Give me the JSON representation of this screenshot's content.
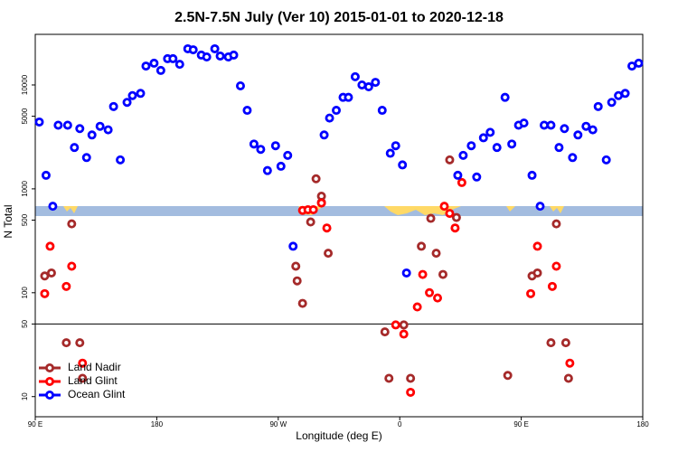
{
  "chart_data": {
    "type": "scatter",
    "title": "2.5N-7.5N July (Ver 10)   2015-01-01 to 2020-12-18",
    "x_label": "Longitude (deg E)",
    "y_label": "N Total",
    "xlim": [
      90,
      540
    ],
    "xticks": [
      {
        "value": 90,
        "label": "90 E"
      },
      180,
      {
        "value": 270,
        "label": "90 W"
      },
      {
        "value": 360,
        "label": "0"
      },
      {
        "value": 450,
        "label": "90 E"
      },
      {
        "value": 540,
        "label": "180"
      }
    ],
    "ylim": [
      6.4,
      30700
    ],
    "log_y": true,
    "yticks": [
      10,
      50,
      100,
      500,
      1000,
      5000,
      10000
    ],
    "legend": "bottom left",
    "series": [
      {
        "name": "Land Nadir",
        "color": "#a52a2a",
        "x": [
          97,
          102,
          117,
          113,
          123,
          125,
          288,
          283,
          284,
          294,
          298,
          302,
          302,
          307,
          349,
          352,
          363,
          368,
          376,
          383,
          387,
          392,
          397,
          402,
          440,
          458,
          462,
          476,
          472,
          483,
          485
        ],
        "values": [
          145,
          155,
          460,
          33,
          33,
          15,
          79,
          180,
          130,
          480,
          1250,
          850,
          740,
          240,
          42,
          15,
          49,
          15,
          280,
          520,
          240,
          150,
          1900,
          530,
          16,
          145,
          155,
          460,
          33,
          33,
          15
        ]
      },
      {
        "name": "Land Glint",
        "color": "#ff0000",
        "x": [
          97,
          101,
          113,
          117,
          125,
          288,
          292,
          296,
          302,
          306,
          357,
          363,
          368,
          373,
          377,
          382,
          388,
          393,
          397,
          401,
          406,
          457,
          462,
          473,
          476,
          486
        ],
        "values": [
          98,
          280,
          115,
          180,
          21,
          620,
          630,
          630,
          730,
          420,
          49,
          40,
          11,
          73,
          150,
          100,
          89,
          680,
          580,
          420,
          1150,
          98,
          280,
          115,
          180,
          21
        ]
      },
      {
        "name": "Ocean Glint",
        "color": "#0000ff",
        "x": [
          93,
          98,
          103,
          107,
          114,
          119,
          123,
          128,
          132,
          138,
          144,
          148,
          153,
          158,
          162,
          168,
          172,
          178,
          183,
          188,
          192,
          197,
          203,
          207,
          213,
          217,
          223,
          227,
          233,
          237,
          242,
          247,
          252,
          257,
          262,
          268,
          272,
          277,
          281,
          304,
          308,
          313,
          318,
          322,
          327,
          332,
          337,
          342,
          347,
          353,
          357,
          362,
          365,
          403,
          407,
          413,
          417,
          422,
          427,
          432,
          438,
          443,
          448,
          452,
          458,
          464,
          467,
          472,
          478,
          482,
          488,
          492,
          498,
          503,
          507,
          513,
          517,
          522,
          527,
          532,
          537
        ],
        "values": [
          4400,
          1350,
          680,
          4100,
          4100,
          2500,
          3800,
          2000,
          3300,
          4000,
          3700,
          6200,
          1900,
          6800,
          7900,
          8300,
          15200,
          16200,
          13800,
          17900,
          17900,
          15800,
          22300,
          21800,
          19400,
          18600,
          22300,
          19000,
          18600,
          19400,
          9800,
          5700,
          2700,
          2400,
          1500,
          2600,
          1650,
          2100,
          280,
          3300,
          4800,
          5700,
          7600,
          7600,
          12000,
          10000,
          9600,
          10600,
          5700,
          2200,
          2600,
          1700,
          155,
          1350,
          2100,
          2600,
          1300,
          3100,
          3500,
          2500,
          7600,
          2700,
          4100,
          4300,
          1350,
          680,
          4100,
          4100,
          2500,
          3800,
          2000,
          3300,
          4000,
          3700,
          6200,
          1900,
          6800,
          7900,
          8300,
          15200,
          16200
        ]
      }
    ]
  }
}
